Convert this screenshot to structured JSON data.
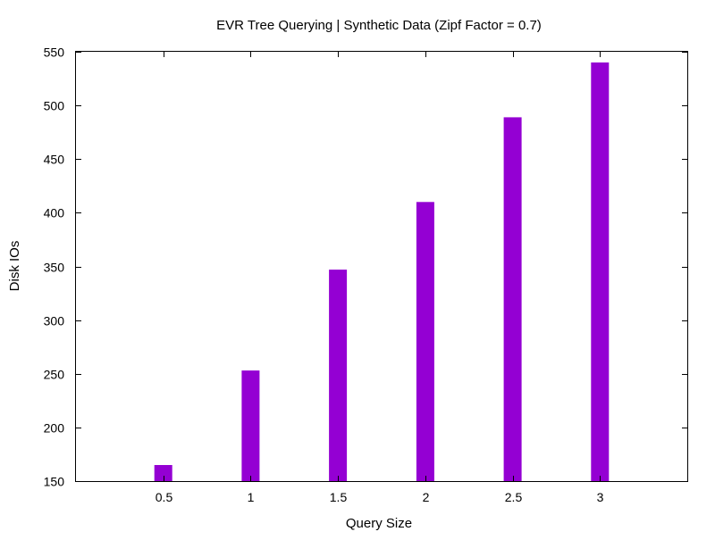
{
  "chart_data": {
    "type": "bar",
    "title": "EVR Tree Querying | Synthetic Data (Zipf Factor = 0.7)",
    "xlabel": "Query Size",
    "ylabel": "Disk IOs",
    "categories": [
      "0.5",
      "1",
      "1.5",
      "2",
      "2.5",
      "3"
    ],
    "x": [
      0.5,
      1,
      1.5,
      2,
      2.5,
      3
    ],
    "values": [
      165,
      253,
      347,
      410,
      489,
      540
    ],
    "xlim": [
      0,
      3.5
    ],
    "ylim": [
      150,
      550
    ],
    "yticks": [
      "150",
      "200",
      "250",
      "300",
      "350",
      "400",
      "450",
      "500",
      "550"
    ],
    "bar_color": "#9400d3",
    "grid": false,
    "legend": "none"
  }
}
